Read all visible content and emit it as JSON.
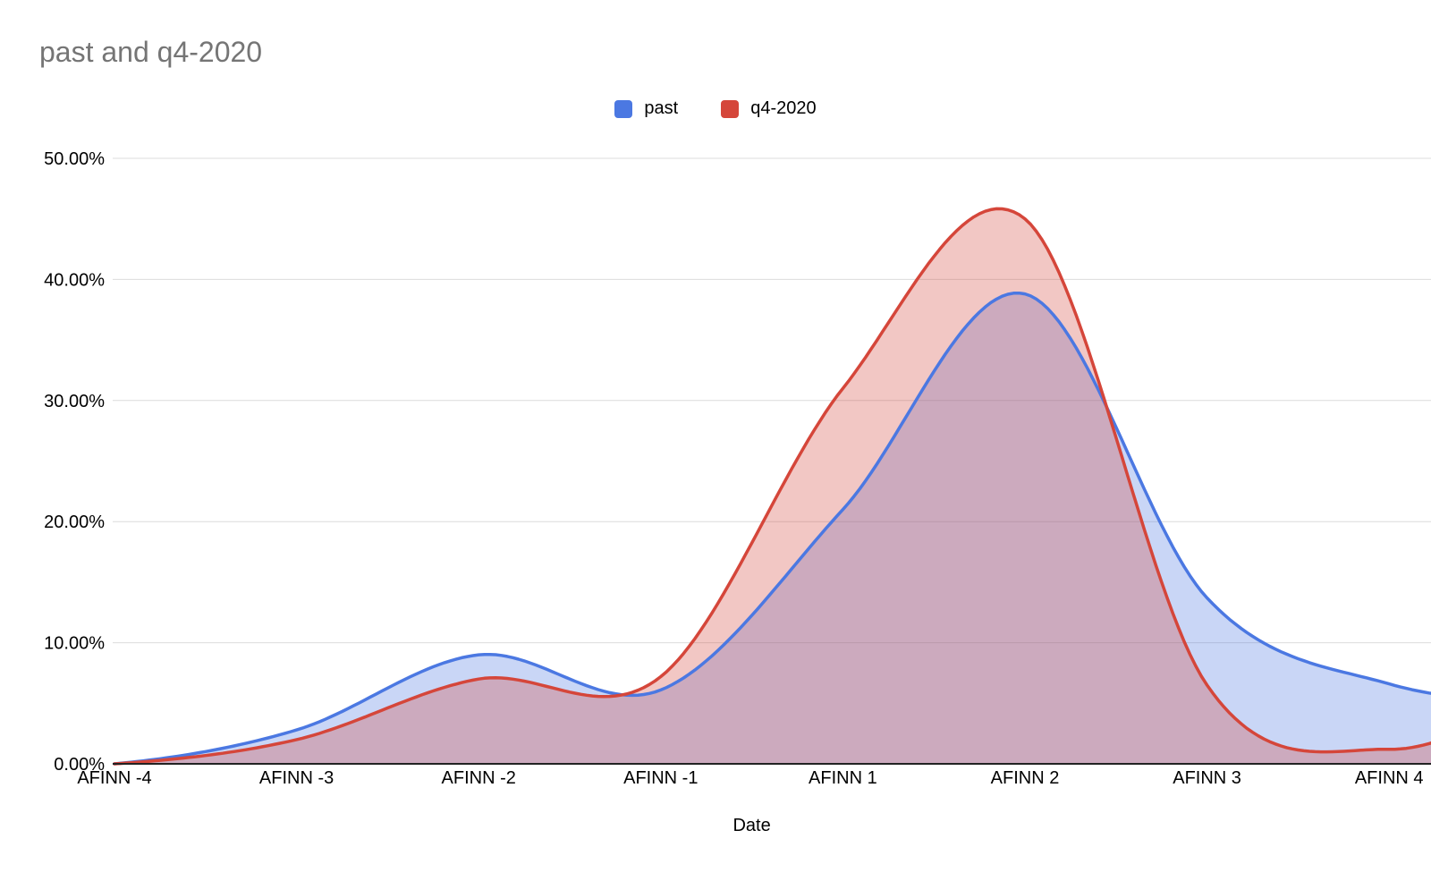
{
  "colors": {
    "title_text": "#757575",
    "axis_text": "#000000",
    "gridline": "#dcdcdc",
    "axis_line": "#222222",
    "background": "#ffffff"
  },
  "chart_data": {
    "type": "area",
    "title": "past and q4-2020",
    "xlabel": "Date",
    "ylabel": "",
    "categories": [
      "AFINN -4",
      "AFINN -3",
      "AFINN -2",
      "AFINN -1",
      "AFINN 1",
      "AFINN 2",
      "AFINN 3",
      "AFINN 4"
    ],
    "series": [
      {
        "name": "past",
        "color": "#4b78e2",
        "values": [
          0,
          2.8,
          9.0,
          6.1,
          21.0,
          38.8,
          13.7,
          6.6
        ]
      },
      {
        "name": "q4-2020",
        "color": "#d5463a",
        "values": [
          0,
          2.0,
          7.0,
          7.2,
          31.0,
          45.0,
          6.5,
          1.2
        ]
      }
    ],
    "values_unit": "%",
    "y_tick_labels": [
      "0.00%",
      "10.00%",
      "20.00%",
      "30.00%",
      "40.00%",
      "50.00%"
    ],
    "y_tick_values": [
      0,
      10,
      20,
      30,
      40,
      50
    ],
    "ylim": [
      0,
      50
    ],
    "grid": true,
    "smooth": true,
    "fill_opacity": 0.3,
    "legend_position": "top"
  }
}
